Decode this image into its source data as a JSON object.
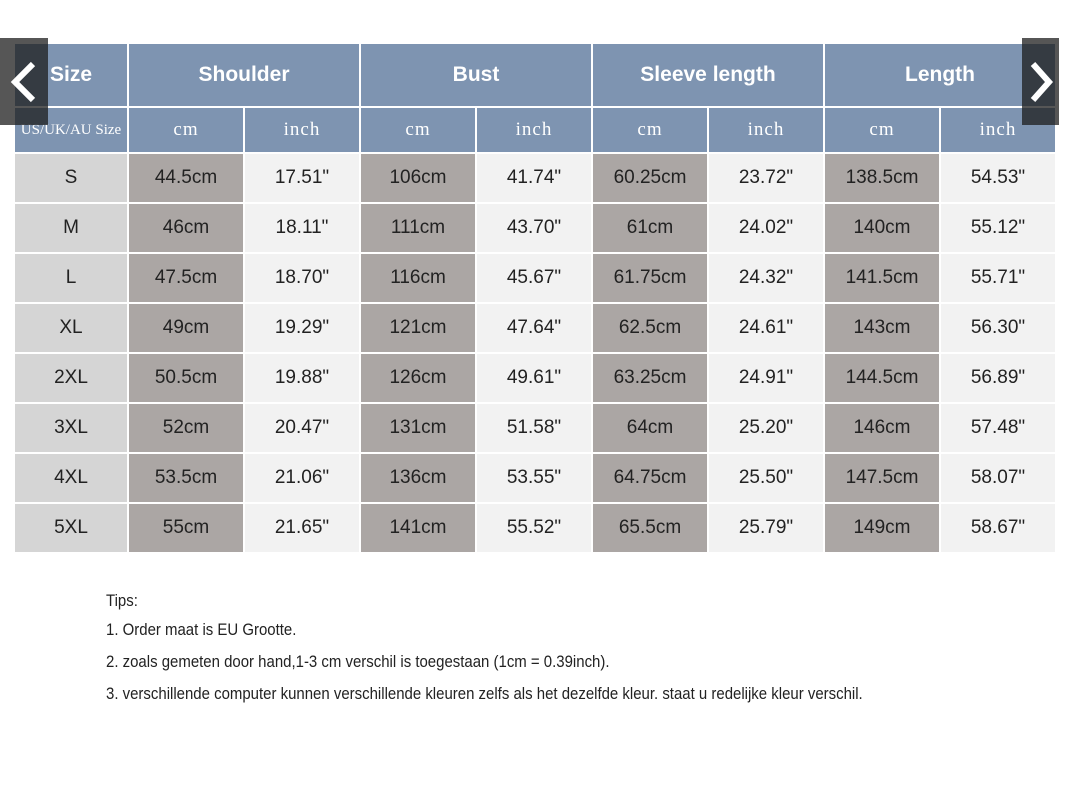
{
  "table": {
    "headers": [
      "Size",
      "Shoulder",
      "Bust",
      "Sleeve length",
      "Length"
    ],
    "size_unit_label": "US/UK/AU Size",
    "unit_cm": "cm",
    "unit_inch": "inch",
    "rows": [
      [
        "S",
        "44.5cm",
        "17.51\"",
        "106cm",
        "41.74\"",
        "60.25cm",
        "23.72\"",
        "138.5cm",
        "54.53\""
      ],
      [
        "M",
        "46cm",
        "18.11\"",
        "111cm",
        "43.70\"",
        "61cm",
        "24.02\"",
        "140cm",
        "55.12\""
      ],
      [
        "L",
        "47.5cm",
        "18.70\"",
        "116cm",
        "45.67\"",
        "61.75cm",
        "24.32\"",
        "141.5cm",
        "55.71\""
      ],
      [
        "XL",
        "49cm",
        "19.29\"",
        "121cm",
        "47.64\"",
        "62.5cm",
        "24.61\"",
        "143cm",
        "56.30\""
      ],
      [
        "2XL",
        "50.5cm",
        "19.88\"",
        "126cm",
        "49.61\"",
        "63.25cm",
        "24.91\"",
        "144.5cm",
        "56.89\""
      ],
      [
        "3XL",
        "52cm",
        "20.47\"",
        "131cm",
        "51.58\"",
        "64cm",
        "25.20\"",
        "146cm",
        "57.48\""
      ],
      [
        "4XL",
        "53.5cm",
        "21.06\"",
        "136cm",
        "53.55\"",
        "64.75cm",
        "25.50\"",
        "147.5cm",
        "58.07\""
      ],
      [
        "5XL",
        "55cm",
        "21.65\"",
        "141cm",
        "55.52\"",
        "65.5cm",
        "25.79\"",
        "149cm",
        "58.67\""
      ]
    ]
  },
  "tips": {
    "title": "Tips:",
    "items": [
      "1. Order maat is EU Grootte.",
      "2. zoals gemeten door hand,1-3 cm verschil is toegestaan (1cm = 0.39inch).",
      "3. verschillende computer kunnen verschillende kleuren zelfs als het dezelfde kleur. staat u redelijke kleur verschil."
    ]
  },
  "nav": {
    "prev_icon": "chevron-left-icon",
    "next_icon": "chevron-right-icon"
  },
  "colors": {
    "header": "#7e94b1",
    "size_col": "#d5d5d5",
    "cm_col": "#aba6a4",
    "inch_col": "#f2f2f2"
  }
}
